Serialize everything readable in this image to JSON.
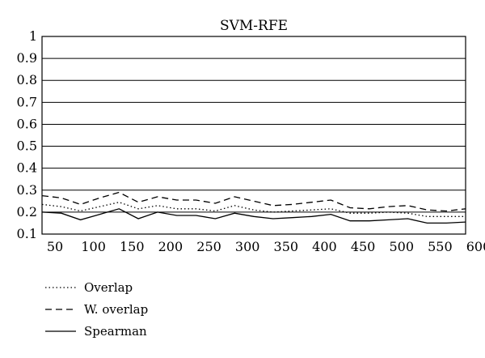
{
  "chart_data": {
    "type": "line",
    "title": "SVM-RFE",
    "xlabel": "",
    "ylabel": "",
    "x": [
      50,
      75,
      100,
      125,
      150,
      175,
      200,
      225,
      250,
      275,
      300,
      325,
      350,
      375,
      400,
      425,
      450,
      475,
      500,
      525,
      550,
      575,
      600
    ],
    "xticks": [
      50,
      100,
      150,
      200,
      250,
      300,
      350,
      400,
      450,
      500,
      550,
      600
    ],
    "xtick_labels": [
      "50",
      "100",
      "150",
      "200",
      "250",
      "300",
      "350",
      "400",
      "450",
      "500",
      "550",
      "600"
    ],
    "xlim": [
      50,
      600
    ],
    "ylim": [
      0.1,
      1
    ],
    "yticks": [
      0.1,
      0.2,
      0.3,
      0.4,
      0.5,
      0.6,
      0.7,
      0.8,
      0.9,
      1
    ],
    "ytick_labels": [
      "0.1",
      "0.2",
      "0.3",
      "0.4",
      "0.5",
      "0.6",
      "0.7",
      "0.8",
      "0.9",
      "1"
    ],
    "grid": "horizontal",
    "legend_position": "bottom-left",
    "series": [
      {
        "name": "Overlap",
        "style": "dotted",
        "color": "#000000",
        "values": [
          0.235,
          0.225,
          0.205,
          0.225,
          0.245,
          0.215,
          0.23,
          0.215,
          0.215,
          0.205,
          0.23,
          0.21,
          0.2,
          0.205,
          0.21,
          0.215,
          0.195,
          0.195,
          0.2,
          0.195,
          0.18,
          0.18,
          0.18
        ]
      },
      {
        "name": "W. overlap",
        "style": "dashed",
        "color": "#000000",
        "values": [
          0.275,
          0.265,
          0.235,
          0.265,
          0.29,
          0.245,
          0.27,
          0.255,
          0.255,
          0.24,
          0.27,
          0.25,
          0.23,
          0.235,
          0.245,
          0.255,
          0.22,
          0.215,
          0.225,
          0.23,
          0.21,
          0.205,
          0.215
        ]
      },
      {
        "name": "Spearman",
        "style": "solid",
        "color": "#000000",
        "values": [
          0.2,
          0.195,
          0.165,
          0.19,
          0.215,
          0.17,
          0.2,
          0.185,
          0.185,
          0.17,
          0.195,
          0.18,
          0.17,
          0.175,
          0.18,
          0.19,
          0.16,
          0.16,
          0.165,
          0.17,
          0.15,
          0.15,
          0.155
        ]
      }
    ]
  }
}
